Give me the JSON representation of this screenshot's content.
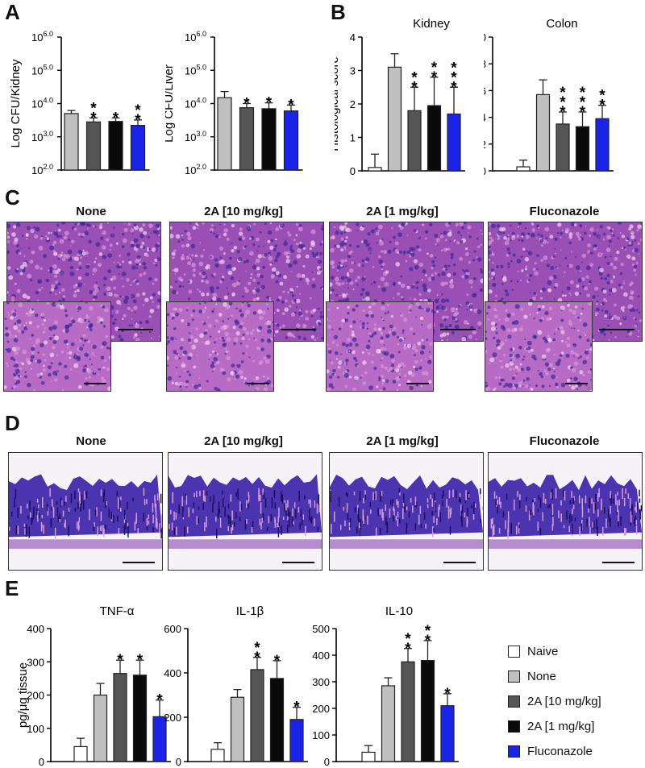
{
  "panels": {
    "A": "A",
    "B": "B",
    "C": "C",
    "D": "D",
    "E": "E"
  },
  "groups": [
    "Naive",
    "None",
    "2A [10 mg/kg]",
    "2A [1 mg/kg]",
    "Fluconazole"
  ],
  "colors": {
    "Naive": "#ffffff",
    "None": "#c0c0c0",
    "2A [10 mg/kg]": "#555555",
    "2A [1 mg/kg]": "#0a0a0a",
    "Fluconazole": "#1a24e8",
    "histology_bg": "#9a4fb4",
    "histology_dark": "#3b2a9a",
    "histology_light": "#d996d9"
  },
  "chart_data": [
    {
      "id": "A-kidney",
      "type": "bar",
      "panel": "A",
      "ylabel": "Log CFU/Kidney",
      "log_scale": true,
      "ylim": [
        100,
        1000000
      ],
      "yticks": [
        100,
        1000,
        10000,
        100000,
        1000000
      ],
      "ytick_base": "10",
      "ytick_exps": [
        "2.0",
        "3.0",
        "4.0",
        "5.0",
        "6.0"
      ],
      "categories": [
        "None",
        "2A [10 mg/kg]",
        "2A [1 mg/kg]",
        "Fluconazole"
      ],
      "values": [
        5000,
        2800,
        2900,
        2200
      ],
      "errors": [
        1200,
        900,
        800,
        1000
      ],
      "sig": [
        "",
        "**",
        "*",
        "**"
      ]
    },
    {
      "id": "A-liver",
      "type": "bar",
      "panel": "A",
      "ylabel": "Log CFU/Liver",
      "log_scale": true,
      "ylim": [
        100,
        1000000
      ],
      "yticks": [
        100,
        1000,
        10000,
        100000,
        1000000
      ],
      "ytick_base": "10",
      "ytick_exps": [
        "2.0",
        "3.0",
        "4.0",
        "5.0",
        "6.0"
      ],
      "categories": [
        "None",
        "2A [10 mg/kg]",
        "2A [1 mg/kg]",
        "Fluconazole"
      ],
      "values": [
        15000,
        7500,
        7000,
        6000
      ],
      "errors": [
        8000,
        2500,
        3500,
        3000
      ],
      "sig": [
        "",
        "*",
        "*",
        "*"
      ]
    },
    {
      "id": "B-kidney",
      "type": "bar",
      "panel": "B",
      "title": "Kidney",
      "ylabel": "Histological score",
      "ylim": [
        0,
        4
      ],
      "yticks": [
        0,
        1,
        2,
        3,
        4
      ],
      "categories": [
        "Naive",
        "None",
        "2A [10 mg/kg]",
        "2A [1 mg/kg]",
        "Fluconazole"
      ],
      "values": [
        0.1,
        3.1,
        1.8,
        1.95,
        1.7
      ],
      "errors": [
        0.4,
        0.4,
        0.7,
        0.85,
        0.8
      ],
      "sig": [
        "",
        "",
        "**",
        "**",
        "***"
      ]
    },
    {
      "id": "B-colon",
      "type": "bar",
      "panel": "B",
      "title": "Colon",
      "ylabel": "",
      "ylim": [
        0,
        10
      ],
      "yticks": [
        0,
        2,
        4,
        6,
        8,
        10
      ],
      "categories": [
        "Naive",
        "None",
        "2A [10 mg/kg]",
        "2A [1 mg/kg]",
        "Fluconazole"
      ],
      "values": [
        0.3,
        5.7,
        3.5,
        3.3,
        3.9
      ],
      "errors": [
        0.5,
        1.1,
        0.9,
        1.1,
        1.0
      ],
      "sig": [
        "",
        "",
        "***",
        "***",
        "**"
      ]
    },
    {
      "id": "E-tnf",
      "type": "bar",
      "panel": "E",
      "title": "TNF-α",
      "ylabel": "pg/μg tissue",
      "ylim": [
        0,
        400
      ],
      "yticks": [
        0,
        100,
        200,
        300,
        400
      ],
      "categories": [
        "Naive",
        "None",
        "2A [10 mg/kg]",
        "2A [1 mg/kg]",
        "Fluconazole"
      ],
      "values": [
        45,
        200,
        265,
        260,
        135
      ],
      "errors": [
        25,
        35,
        40,
        45,
        50
      ],
      "sig": [
        "",
        "",
        "*",
        "*",
        "*"
      ]
    },
    {
      "id": "E-il1b",
      "type": "bar",
      "panel": "E",
      "title": "IL-1β",
      "ylabel": "",
      "ylim": [
        0,
        600
      ],
      "yticks": [
        0,
        200,
        400,
        600
      ],
      "categories": [
        "Naive",
        "None",
        "2A [10 mg/kg]",
        "2A [1 mg/kg]",
        "Fluconazole"
      ],
      "values": [
        55,
        290,
        415,
        375,
        190
      ],
      "errors": [
        30,
        35,
        55,
        80,
        55
      ],
      "sig": [
        "",
        "",
        "**",
        "*",
        "*"
      ]
    },
    {
      "id": "E-il10",
      "type": "bar",
      "panel": "E",
      "title": "IL-10",
      "ylabel": "",
      "ylim": [
        0,
        500
      ],
      "yticks": [
        0,
        100,
        200,
        300,
        400,
        500
      ],
      "categories": [
        "Naive",
        "None",
        "2A [10 mg/kg]",
        "2A [1 mg/kg]",
        "Fluconazole"
      ],
      "values": [
        35,
        285,
        375,
        380,
        210
      ],
      "errors": [
        25,
        30,
        50,
        75,
        45
      ],
      "sig": [
        "",
        "",
        "**",
        "**",
        "*"
      ]
    }
  ],
  "micrographs": {
    "C": {
      "labels": [
        "None",
        "2A [10 mg/kg]",
        "2A [1 mg/kg]",
        "Fluconazole"
      ]
    },
    "D": {
      "labels": [
        "None",
        "2A [10 mg/kg]",
        "2A [1 mg/kg]",
        "Fluconazole"
      ]
    }
  },
  "legend": {
    "items": [
      "Naive",
      "None",
      "2A [10 mg/kg]",
      "2A [1 mg/kg]",
      "Fluconazole"
    ]
  }
}
